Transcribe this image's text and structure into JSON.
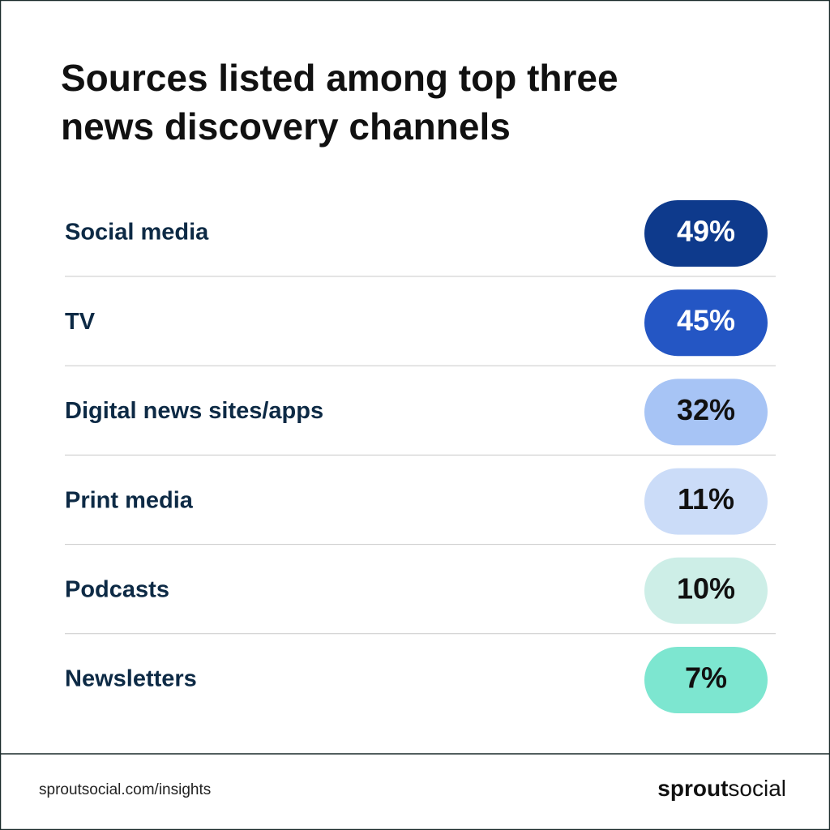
{
  "chart_data": {
    "type": "pill-list",
    "title": "Sources listed among top three news discovery channels",
    "categories": [
      "Social media",
      "TV",
      "Digital news sites/apps",
      "Print media",
      "Podcasts",
      "Newsletters"
    ],
    "values": [
      49,
      45,
      32,
      11,
      10,
      7
    ],
    "value_labels": [
      "49%",
      "45%",
      "32%",
      "11%",
      "10%",
      "7%"
    ],
    "colors": [
      "#0e3a8c",
      "#2456c4",
      "#a7c4f5",
      "#cbdcf8",
      "#cdeee7",
      "#7de6d0"
    ]
  },
  "footer": {
    "url": "sproutsocial.com/insights",
    "brand_bold": "sprout",
    "brand_light": "social"
  }
}
